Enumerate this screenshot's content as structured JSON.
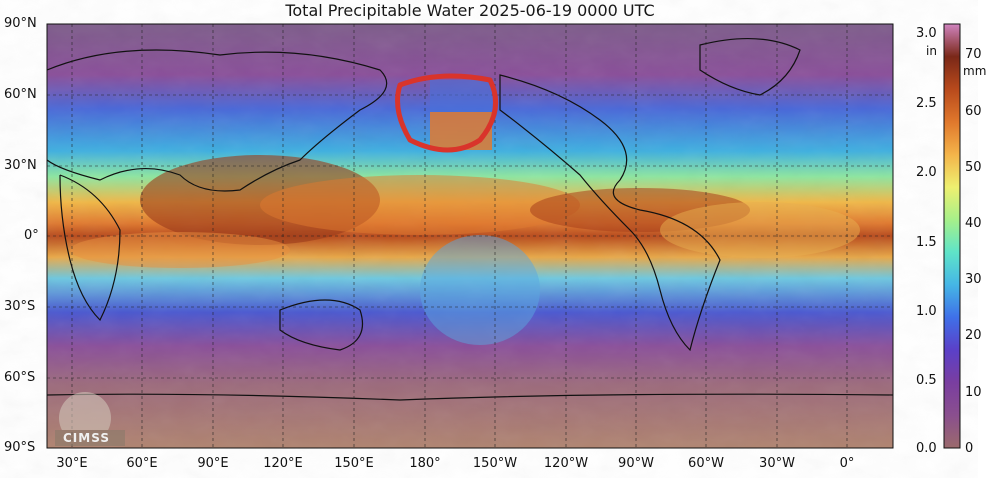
{
  "title": "Total Precipitable Water  2025-06-19 0000 UTC",
  "lat_labels": [
    "90°N",
    "60°N",
    "30°N",
    "0°",
    "30°S",
    "60°S",
    "90°S"
  ],
  "lon_labels": [
    "30°E",
    "60°E",
    "90°E",
    "120°E",
    "150°E",
    "180°",
    "150°W",
    "120°W",
    "90°W",
    "60°W",
    "30°W",
    "0°"
  ],
  "colorbar": {
    "unit_in": "in",
    "unit_mm": "mm",
    "in_ticks": [
      "3.0",
      "2.5",
      "2.0",
      "1.5",
      "1.0",
      "0.5",
      "0.0"
    ],
    "mm_ticks": [
      "70",
      "60",
      "50",
      "40",
      "30",
      "20",
      "10",
      "0"
    ],
    "range_mm": [
      0,
      76
    ],
    "colors": [
      "#9b6a6c",
      "#8a4f8e",
      "#7a3ea0",
      "#5b40c8",
      "#3f70e8",
      "#45b6e6",
      "#5fe4c8",
      "#a6f08a",
      "#eef070",
      "#f4b44a",
      "#e0782c",
      "#b84a1c",
      "#7a2818",
      "#d084c0"
    ]
  },
  "logo": {
    "text": "CIMSS",
    "name": "cimss-logo"
  },
  "annotation": {
    "type": "red-circle",
    "description": "hand-drawn red ellipse over North Pacific"
  },
  "colors": {
    "ocean_dry": "#a57a6c",
    "ocean_moist": "#e0782c",
    "grid": "#222222",
    "annotation_red": "#d9342b"
  }
}
